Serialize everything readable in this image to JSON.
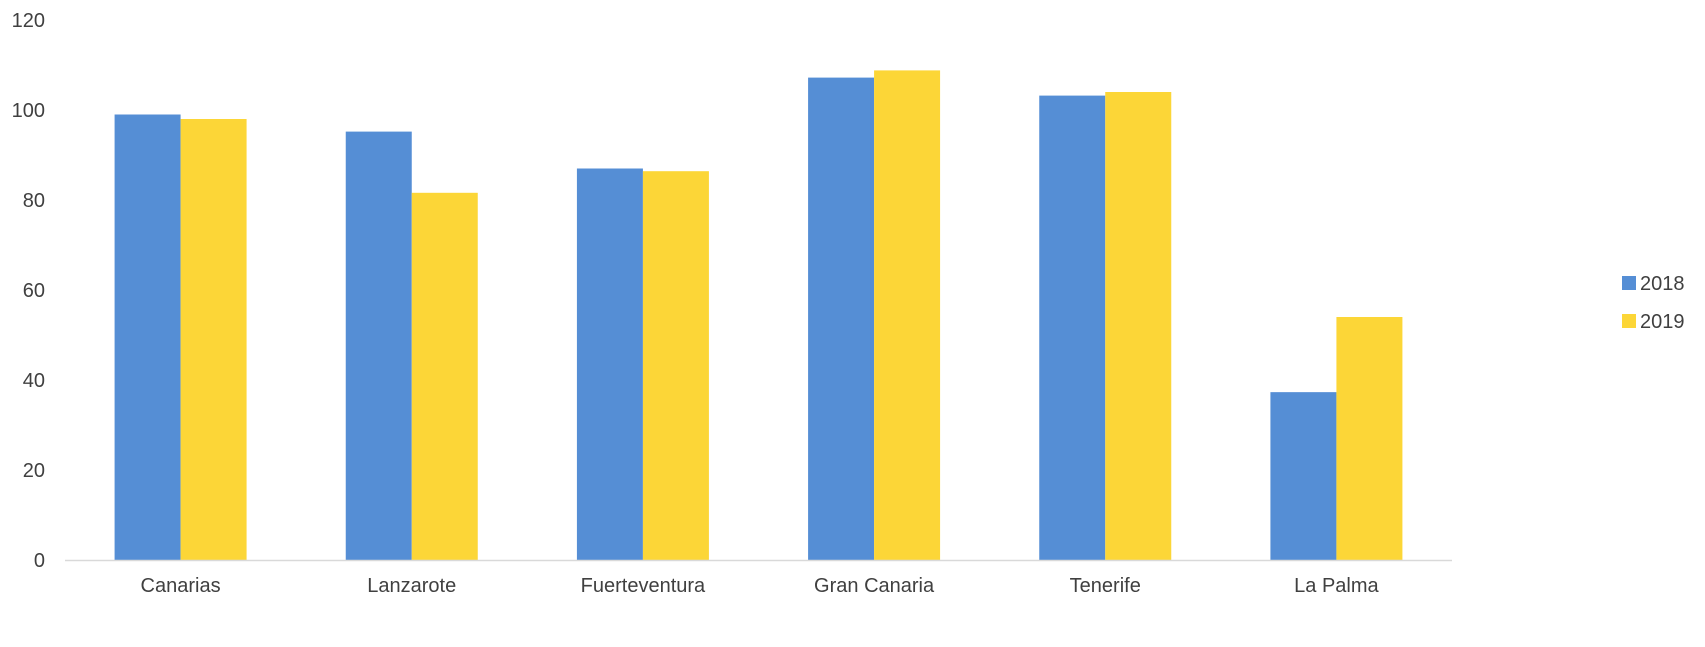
{
  "chart_data": {
    "type": "bar",
    "categories": [
      "Canarias",
      "Lanzarote",
      "Fuerteventura",
      "Gran Canaria",
      "Tenerife",
      "La Palma"
    ],
    "series": [
      {
        "name": "2018",
        "color": "#558ED5",
        "values": [
          99,
          95.2,
          87,
          107.2,
          103.2,
          37.3
        ]
      },
      {
        "name": "2019",
        "color": "#FCD637",
        "values": [
          98,
          81.6,
          86.4,
          108.8,
          104,
          54
        ]
      }
    ],
    "yticks": [
      "0",
      "20",
      "40",
      "60",
      "80",
      "100",
      "120"
    ],
    "ylim": [
      0,
      120
    ],
    "grid": false,
    "legend_position": "right",
    "axis_color": "#D9D9D9",
    "text_color": "#404040"
  }
}
